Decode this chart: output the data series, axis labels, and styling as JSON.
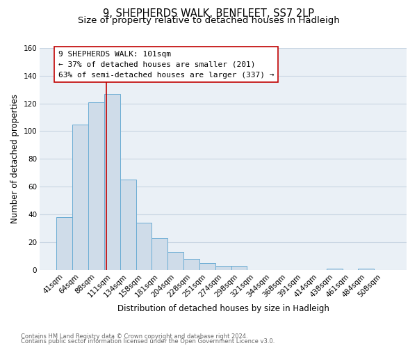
{
  "title": "9, SHEPHERDS WALK, BENFLEET, SS7 2LP",
  "subtitle": "Size of property relative to detached houses in Hadleigh",
  "xlabel": "Distribution of detached houses by size in Hadleigh",
  "ylabel": "Number of detached properties",
  "footnote1": "Contains HM Land Registry data © Crown copyright and database right 2024.",
  "footnote2": "Contains public sector information licensed under the Open Government Licence v3.0.",
  "bar_labels": [
    "41sqm",
    "64sqm",
    "88sqm",
    "111sqm",
    "134sqm",
    "158sqm",
    "181sqm",
    "204sqm",
    "228sqm",
    "251sqm",
    "274sqm",
    "298sqm",
    "321sqm",
    "344sqm",
    "368sqm",
    "391sqm",
    "414sqm",
    "438sqm",
    "461sqm",
    "484sqm",
    "508sqm"
  ],
  "bar_heights": [
    38,
    105,
    121,
    127,
    65,
    34,
    23,
    13,
    8,
    5,
    3,
    3,
    0,
    0,
    0,
    0,
    0,
    1,
    0,
    1,
    0
  ],
  "bar_color": "#cfdce9",
  "bar_edge_color": "#6aacd4",
  "annotation_box_text": "9 SHEPHERDS WALK: 101sqm\n← 37% of detached houses are smaller (201)\n63% of semi-detached houses are larger (337) →",
  "annotation_box_edge_color": "#c00000",
  "annotation_box_face_color": "#ffffff",
  "vline_x_index": 2.62,
  "vline_color": "#c00000",
  "ylim": [
    0,
    160
  ],
  "yticks": [
    0,
    20,
    40,
    60,
    80,
    100,
    120,
    140,
    160
  ],
  "grid_color": "#c8d5e3",
  "background_color": "#eaf0f6",
  "title_fontsize": 10.5,
  "subtitle_fontsize": 9.5,
  "axis_label_fontsize": 8.5,
  "tick_fontsize": 7.5,
  "annotation_fontsize": 8.0,
  "footnote_fontsize": 6.0
}
